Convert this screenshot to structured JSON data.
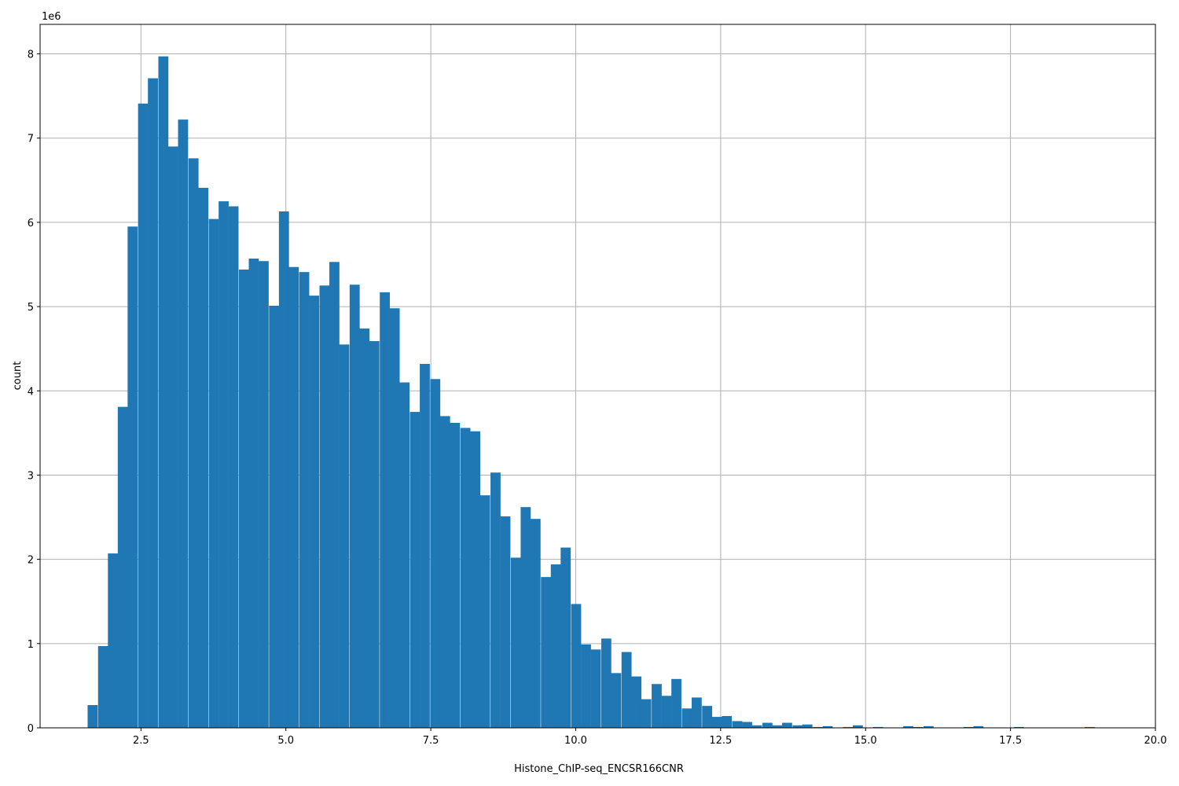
{
  "chart_data": {
    "type": "bar",
    "subtype": "histogram",
    "xlabel": "Histone_ChIP-seq_ENCSR166CNR",
    "ylabel": "count",
    "y_multiplier": "1e6",
    "xlim": [
      0.76,
      20.0
    ],
    "ylim": [
      0,
      8.35
    ],
    "grid": true,
    "bar_color": "#1f77b4",
    "bin_width": 0.1733,
    "x_ticks": [
      "2.5",
      "5.0",
      "7.5",
      "10.0",
      "12.5",
      "15.0",
      "17.5",
      "20.0"
    ],
    "x_tick_values": [
      2.5,
      5.0,
      7.5,
      10.0,
      12.5,
      15.0,
      17.5,
      20.0
    ],
    "y_ticks": [
      "0",
      "1",
      "2",
      "3",
      "4",
      "5",
      "6",
      "7",
      "8"
    ],
    "y_tick_values": [
      0,
      1,
      2,
      3,
      4,
      5,
      6,
      7,
      8
    ],
    "bins": [
      [
        1.58,
        0.27
      ],
      [
        1.76,
        0.97
      ],
      [
        1.93,
        2.07
      ],
      [
        2.1,
        3.81
      ],
      [
        2.27,
        5.95
      ],
      [
        2.45,
        7.41
      ],
      [
        2.62,
        7.71
      ],
      [
        2.8,
        7.97
      ],
      [
        2.97,
        6.9
      ],
      [
        3.14,
        7.22
      ],
      [
        3.32,
        6.76
      ],
      [
        3.49,
        6.41
      ],
      [
        3.67,
        6.04
      ],
      [
        3.84,
        6.25
      ],
      [
        4.01,
        6.19
      ],
      [
        4.19,
        5.44
      ],
      [
        4.36,
        5.57
      ],
      [
        4.53,
        5.54
      ],
      [
        4.71,
        5.01
      ],
      [
        4.88,
        6.13
      ],
      [
        5.05,
        5.47
      ],
      [
        5.23,
        5.41
      ],
      [
        5.4,
        5.13
      ],
      [
        5.58,
        5.25
      ],
      [
        5.75,
        5.53
      ],
      [
        5.92,
        4.55
      ],
      [
        6.1,
        5.26
      ],
      [
        6.27,
        4.74
      ],
      [
        6.44,
        4.59
      ],
      [
        6.62,
        5.17
      ],
      [
        6.79,
        4.98
      ],
      [
        6.96,
        4.1
      ],
      [
        7.14,
        3.75
      ],
      [
        7.31,
        4.32
      ],
      [
        7.49,
        4.14
      ],
      [
        7.66,
        3.7
      ],
      [
        7.83,
        3.62
      ],
      [
        8.01,
        3.56
      ],
      [
        8.18,
        3.52
      ],
      [
        8.35,
        2.76
      ],
      [
        8.53,
        3.03
      ],
      [
        8.7,
        2.51
      ],
      [
        8.88,
        2.02
      ],
      [
        9.05,
        2.62
      ],
      [
        9.22,
        2.48
      ],
      [
        9.4,
        1.79
      ],
      [
        9.57,
        1.94
      ],
      [
        9.74,
        2.14
      ],
      [
        9.92,
        1.47
      ],
      [
        10.09,
        0.99
      ],
      [
        10.26,
        0.93
      ],
      [
        10.44,
        1.06
      ],
      [
        10.61,
        0.65
      ],
      [
        10.79,
        0.9
      ],
      [
        10.96,
        0.61
      ],
      [
        11.13,
        0.34
      ],
      [
        11.31,
        0.52
      ],
      [
        11.48,
        0.38
      ],
      [
        11.65,
        0.58
      ],
      [
        11.83,
        0.23
      ],
      [
        12.0,
        0.36
      ],
      [
        12.18,
        0.26
      ],
      [
        12.35,
        0.13
      ],
      [
        12.52,
        0.14
      ],
      [
        12.7,
        0.08
      ],
      [
        12.87,
        0.07
      ],
      [
        13.04,
        0.03
      ],
      [
        13.22,
        0.06
      ],
      [
        13.39,
        0.03
      ],
      [
        13.56,
        0.06
      ],
      [
        13.74,
        0.03
      ],
      [
        13.91,
        0.04
      ],
      [
        14.09,
        0.01
      ],
      [
        14.26,
        0.02
      ],
      [
        14.43,
        0.0
      ],
      [
        14.61,
        0.01
      ],
      [
        14.78,
        0.03
      ],
      [
        14.95,
        0.0
      ],
      [
        15.13,
        0.01
      ],
      [
        15.3,
        0.0
      ],
      [
        15.47,
        0.0
      ],
      [
        15.65,
        0.02
      ],
      [
        15.82,
        0.01
      ],
      [
        16.0,
        0.02
      ],
      [
        16.17,
        0.0
      ],
      [
        16.34,
        0.0
      ],
      [
        16.52,
        0.0
      ],
      [
        16.69,
        0.01
      ],
      [
        16.86,
        0.02
      ],
      [
        17.04,
        0.0
      ],
      [
        17.21,
        0.0
      ],
      [
        17.39,
        0.0
      ],
      [
        17.56,
        0.01
      ],
      [
        17.73,
        0.0
      ],
      [
        17.91,
        0.0
      ],
      [
        18.08,
        0.0
      ],
      [
        18.25,
        0.0
      ],
      [
        18.43,
        0.0
      ],
      [
        18.6,
        0.0
      ],
      [
        18.78,
        0.01
      ]
    ]
  }
}
